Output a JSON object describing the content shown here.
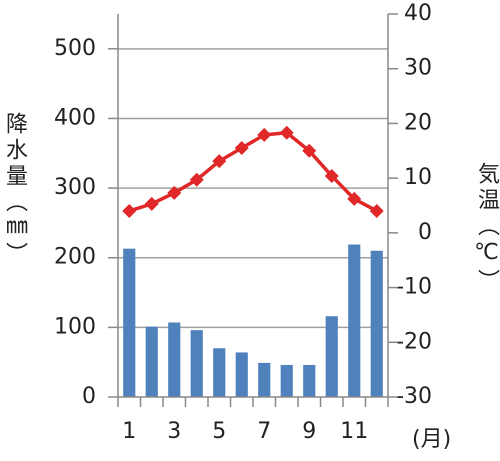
{
  "chart_data": {
    "type": "combo",
    "categories": [
      "1",
      null,
      "3",
      null,
      "5",
      null,
      "7",
      null,
      "9",
      null,
      "11",
      null
    ],
    "x_label": "(月)",
    "y_label": "降水量（㎜）",
    "y2_label": "気温（℃）",
    "ylim": [
      0,
      550
    ],
    "yticks": [
      0,
      100,
      200,
      300,
      400,
      500
    ],
    "y2lim": [
      -30,
      40
    ],
    "y2ticks": [
      -30,
      -20,
      -10,
      0,
      10,
      20,
      30,
      40
    ],
    "grid": true,
    "series": [
      {
        "type": "bar",
        "color": "#4f81bd",
        "values": [
          213,
          101,
          107,
          96,
          70,
          64,
          49,
          46,
          46,
          116,
          219,
          210
        ]
      },
      {
        "type": "line",
        "axis": "y2",
        "color": "#e02828",
        "values": [
          4,
          5.3,
          7.3,
          9.7,
          13.1,
          15.5,
          17.9,
          18.3,
          15,
          10.4,
          6.2,
          4
        ]
      }
    ]
  }
}
